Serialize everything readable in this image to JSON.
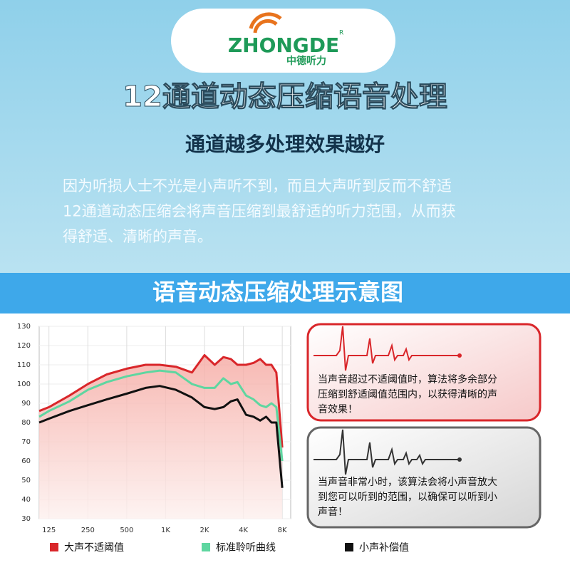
{
  "header": {
    "logo_text": "ZHONGDE",
    "logo_mark": "R",
    "logo_sub": "中德听力",
    "title": "12通道动态压缩语音处理",
    "subtitle": "通道越多处理效果越好",
    "paragraph": [
      "因为听损人士不光是小声听不到，而且大声听到反而不舒适",
      "12通道动态压缩会将声音压缩到最舒适的听力范围，从而获",
      "得舒适、清晰的声音。"
    ]
  },
  "banner": "语音动态压缩处理示意图",
  "chart_data": {
    "type": "line",
    "log_x": true,
    "grid": true,
    "x": [
      105,
      125,
      180,
      250,
      350,
      500,
      700,
      900,
      1200,
      1600,
      2000,
      2400,
      2800,
      3200,
      3600,
      4200,
      4800,
      5400,
      6000,
      6600,
      7200,
      8000
    ],
    "xlim": [
      105,
      9300
    ],
    "xticks": [
      125,
      250,
      500,
      {
        "value": 1000,
        "label": "1K"
      },
      {
        "value": 2000,
        "label": "2K"
      },
      {
        "value": 4000,
        "label": "4K"
      },
      {
        "value": 8000,
        "label": "8K"
      }
    ],
    "ylim": [
      30,
      130
    ],
    "yticks": [
      30,
      40,
      50,
      60,
      70,
      80,
      90,
      100,
      110,
      120,
      130
    ],
    "series": [
      {
        "name": "大声不适阈值",
        "color": "#d9262a",
        "values": [
          86,
          88,
          94,
          100,
          105,
          108,
          110,
          110,
          109,
          106,
          115,
          110,
          114,
          113,
          110,
          110,
          111,
          113,
          110,
          110,
          106,
          67
        ]
      },
      {
        "name": "标准聆听曲线",
        "color": "#5ed6a0",
        "values": [
          83,
          86,
          91,
          97,
          101,
          104,
          106,
          107,
          106,
          100,
          98,
          98,
          103,
          100,
          101,
          94,
          92,
          89,
          88,
          90,
          88,
          60
        ]
      },
      {
        "name": "小声补偿值",
        "color": "#111111",
        "values": [
          80,
          82,
          86,
          89,
          92,
          95,
          98,
          99,
          97,
          93,
          88,
          87,
          88,
          91,
          92,
          84,
          83,
          81,
          83,
          80,
          80,
          46
        ]
      }
    ]
  },
  "notes": [
    {
      "lines": [
        "当声音超过不适阈值时，算法将多余部分",
        "压缩到舒适阈值范围内，以获得清晰的声",
        "音效果！"
      ]
    },
    {
      "lines": [
        "当声音非常小时，该算法会将小声音放大",
        "到您可以听到的范围，以确保可以听到小",
        "声音！"
      ]
    }
  ]
}
